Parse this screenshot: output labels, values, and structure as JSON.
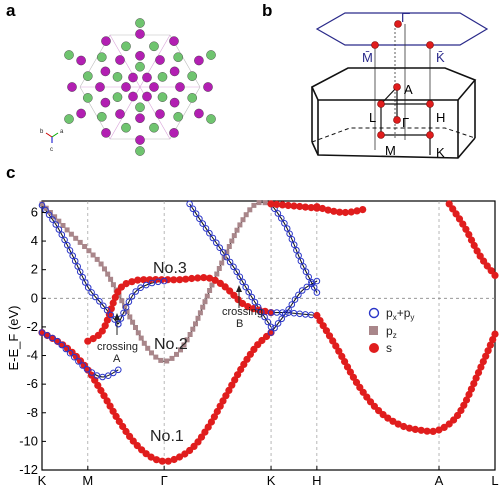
{
  "panels": {
    "a": "a",
    "b": "b",
    "c": "c"
  },
  "panel_a": {
    "axis_labels": [
      "b",
      "a",
      "c"
    ],
    "atom_colors": {
      "magenta": "#b21fb2",
      "green": "#6fc46f"
    }
  },
  "panel_b": {
    "labels": {
      "gamma_top": "Γ̄",
      "m_bar": "M̄",
      "k_bar": "K̄",
      "a": "A",
      "l": "L",
      "h": "H",
      "gamma": "Γ",
      "m": "M",
      "k": "K"
    }
  },
  "chart_data": {
    "type": "line",
    "ylabel": "E-E_F (eV)",
    "ylim": [
      -12,
      6.8
    ],
    "yticks": [
      -12,
      -10,
      -8,
      -6,
      -4,
      -2,
      0,
      2,
      4,
      6
    ],
    "xticks": [
      "K",
      "M",
      "Γ",
      "K",
      "H",
      "A",
      "L"
    ],
    "high_symmetry_points": [
      0,
      0.9,
      2.4,
      4.5,
      5.4,
      7.8,
      8.9
    ],
    "annotations": {
      "no1": "No.1",
      "no2": "No.2",
      "no3": "No.3",
      "crossing_a_1": "crossing",
      "crossing_a_2": "A",
      "crossing_b_1": "crossing",
      "crossing_b_2": "B"
    },
    "legend": {
      "pxpy_main": "p",
      "pxpy_sub1": "x",
      "pxpy_plus": "+p",
      "pxpy_sub2": "y",
      "pz_main": "p",
      "pz_sub": "z",
      "s": "s"
    },
    "colors": {
      "pxpy": "#2a35c8",
      "pz": "#a9868a",
      "s": "#e01d1d"
    },
    "series": [
      {
        "name": "No.1 (s)",
        "projection": "s",
        "x": [
          0,
          0.3,
          0.6,
          0.9,
          1.2,
          1.5,
          1.8,
          2.1,
          2.4,
          2.7,
          3.0,
          3.3,
          3.6,
          3.9,
          4.2,
          4.5
        ],
        "y": [
          -2.4,
          -3.0,
          -3.8,
          -5.0,
          -6.7,
          -8.5,
          -10.0,
          -11.0,
          -11.4,
          -11.1,
          -10.3,
          -8.8,
          -6.9,
          -5.0,
          -3.4,
          -2.4
        ]
      },
      {
        "name": "No.2 (pz)",
        "projection": "pz",
        "x": [
          0,
          0.3,
          0.6,
          0.9,
          1.2,
          1.5,
          1.8,
          2.1,
          2.4,
          2.7,
          3.0,
          3.3,
          3.6,
          3.9,
          4.2,
          4.5
        ],
        "y": [
          6.6,
          5.5,
          4.4,
          3.4,
          2.2,
          0.3,
          -1.8,
          -3.6,
          -4.4,
          -3.7,
          -1.9,
          0.6,
          3.0,
          5.2,
          6.6,
          6.6
        ]
      },
      {
        "name": "No.3 (s)",
        "projection": "s",
        "x": [
          0.9,
          1.2,
          1.5,
          1.8,
          2.1,
          2.4,
          2.7,
          3.0,
          3.3,
          3.6,
          4.0,
          4.5
        ],
        "y": [
          -3.0,
          -2.2,
          0.5,
          1.2,
          1.3,
          1.3,
          1.3,
          1.4,
          1.4,
          0.8,
          -0.5,
          -1.0
        ]
      },
      {
        "name": "p-upper (pxpy)",
        "projection": "pxpy",
        "x": [
          0,
          0.3,
          0.6,
          0.9,
          1.2,
          1.5
        ],
        "y": [
          6.5,
          5.0,
          3.0,
          0.8,
          -0.5,
          -1.8
        ]
      },
      {
        "name": "p-branch (pxpy)",
        "projection": "pxpy",
        "x": [
          0,
          0.3,
          0.6,
          0.9,
          1.2,
          1.5
        ],
        "y": [
          -2.4,
          -3.0,
          -4.0,
          -5.0,
          -5.5,
          -5.0
        ]
      },
      {
        "name": "p-rise (pxpy)",
        "projection": "pxpy",
        "x": [
          1.5,
          1.8,
          2.1,
          2.4
        ],
        "y": [
          -1.8,
          0.3,
          1.0,
          1.2
        ]
      },
      {
        "name": "pxpy Γ-K",
        "projection": "pxpy",
        "x": [
          2.9,
          3.2,
          3.5,
          3.8,
          4.1,
          4.5
        ],
        "y": [
          6.6,
          5.0,
          3.5,
          2.0,
          0.2,
          -2.0
        ]
      },
      {
        "name": "pxpy K-H upper",
        "projection": "pxpy",
        "x": [
          4.5,
          4.8,
          5.1,
          5.4
        ],
        "y": [
          6.6,
          5.0,
          2.5,
          0.4
        ]
      },
      {
        "name": "pxpy K-H lower",
        "projection": "pxpy",
        "x": [
          4.5,
          4.8,
          5.1,
          5.4
        ],
        "y": [
          -1.0,
          -1.0,
          -1.1,
          -1.2
        ]
      },
      {
        "name": "s K-H",
        "projection": "s",
        "x": [
          4.5,
          4.8,
          5.1,
          5.4
        ],
        "y": [
          6.6,
          6.5,
          6.4,
          6.3
        ]
      },
      {
        "name": "s H-A-L",
        "projection": "s",
        "x": [
          5.4,
          5.8,
          6.2,
          6.6,
          7.0,
          7.4,
          7.8,
          8.2,
          8.6,
          8.9
        ],
        "y": [
          -1.2,
          -3.5,
          -6.0,
          -7.8,
          -8.8,
          -9.2,
          -9.2,
          -8.0,
          -5.0,
          -2.5
        ]
      },
      {
        "name": "s H-A top",
        "projection": "s",
        "x": [
          5.4,
          5.7,
          6.0,
          6.3
        ],
        "y": [
          6.4,
          6.1,
          6.0,
          6.2
        ]
      },
      {
        "name": "s A-L rise",
        "projection": "s",
        "x": [
          8.0,
          8.3,
          8.6,
          8.9
        ],
        "y": [
          6.6,
          5.0,
          3.0,
          1.6
        ]
      },
      {
        "name": "pxpy H region",
        "projection": "pxpy",
        "x": [
          4.5,
          4.8,
          5.1,
          5.4
        ],
        "y": [
          -2.4,
          -1.0,
          0.5,
          1.2
        ]
      }
    ]
  }
}
